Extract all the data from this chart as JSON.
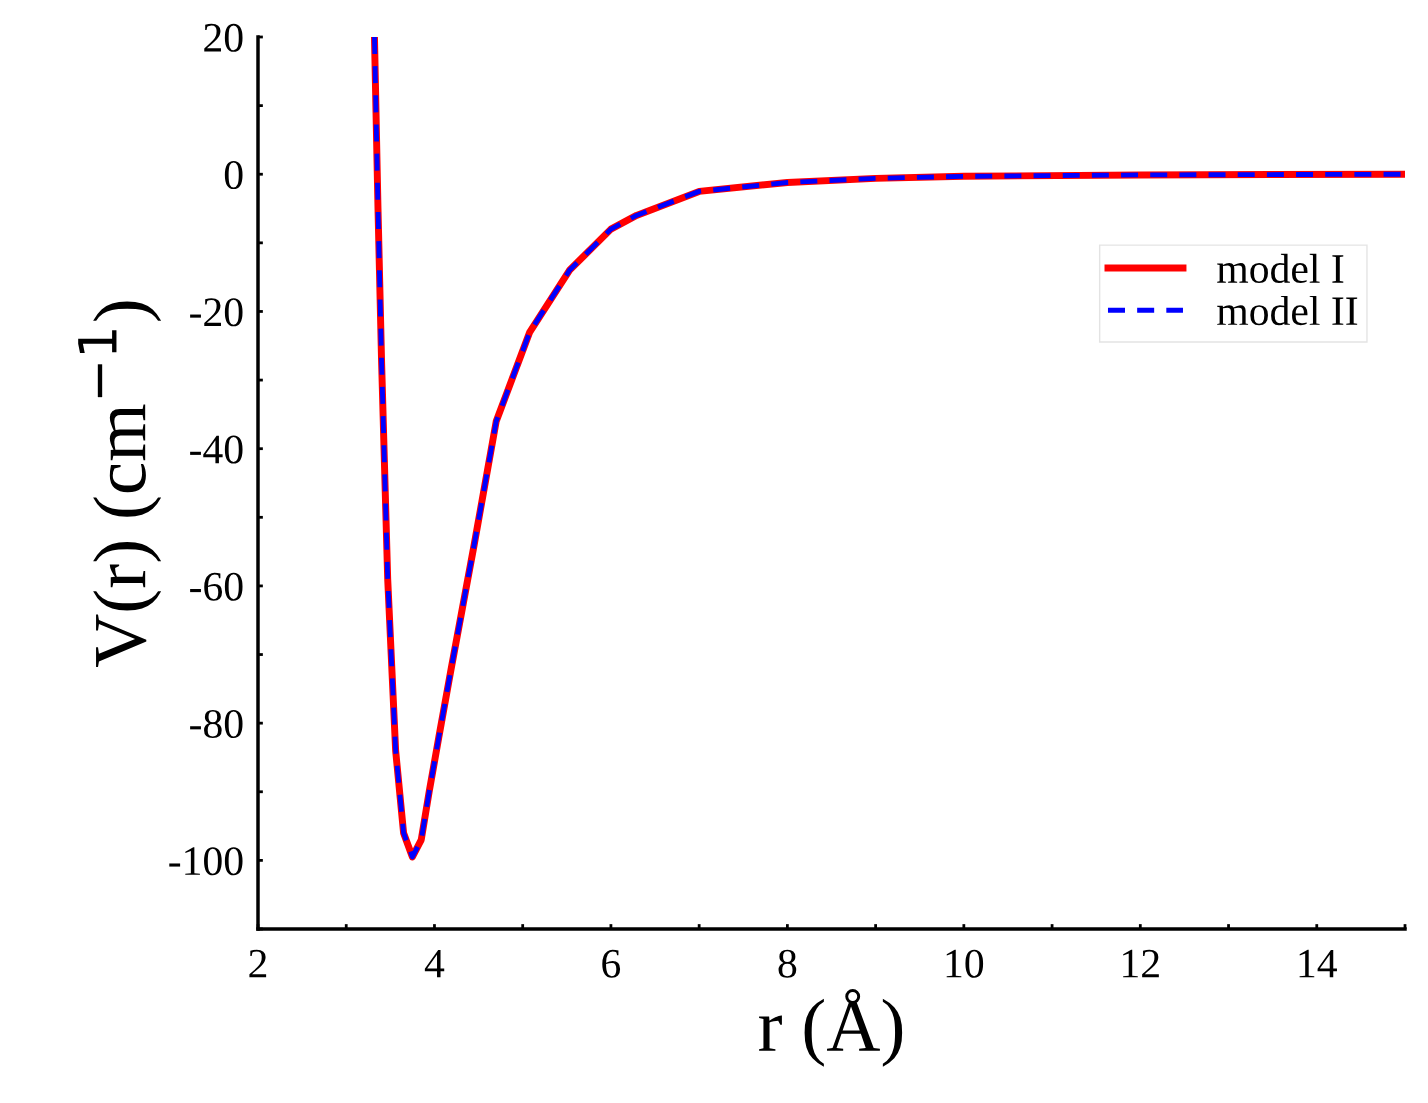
{
  "chart_data": {
    "type": "line",
    "xlabel": "r (Å)",
    "ylabel": "V(r) (cm$^{−1}$)",
    "x": [
      3.32,
      3.36,
      3.4,
      3.47,
      3.56,
      3.65,
      3.75,
      3.85,
      3.94,
      4.05,
      4.19,
      4.45,
      4.7,
      5.08,
      5.53,
      6.0,
      6.29,
      7,
      8,
      9,
      10,
      12,
      15
    ],
    "series": [
      {
        "name": "model I",
        "color": "#ff0000",
        "line_style": "solid",
        "values": [
          20,
          -5,
          -27,
          -59,
          -84,
          -96,
          -99.5,
          -97,
          -90,
          -82,
          -72,
          -54,
          -36,
          -23,
          -14,
          -8,
          -6,
          -2.5,
          -1.2,
          -0.6,
          -0.3,
          -0.1,
          0
        ]
      },
      {
        "name": "model II",
        "color": "#0000ff",
        "line_style": "dashed",
        "values": [
          20,
          -5,
          -27,
          -59,
          -84,
          -96,
          -99.5,
          -97,
          -90,
          -82,
          -72,
          -54,
          -36,
          -23,
          -14,
          -8,
          -6,
          -2.5,
          -1.2,
          -0.6,
          -0.3,
          -0.1,
          0
        ]
      }
    ],
    "xlim": [
      2,
      15
    ],
    "ylim": [
      -110,
      20
    ],
    "xticks": [
      2,
      {
        "value": 3,
        "label": null
      },
      4,
      {
        "value": 5,
        "label": null
      },
      6,
      {
        "value": 7,
        "label": null
      },
      8,
      {
        "value": 9,
        "label": null
      },
      10,
      {
        "value": 11,
        "label": null
      },
      12,
      {
        "value": 13,
        "label": null
      },
      14,
      {
        "value": 15,
        "label": null
      }
    ],
    "yticks": [
      {
        "value": -110,
        "label": null
      },
      -100,
      {
        "value": -90,
        "label": null
      },
      -80,
      {
        "value": -70,
        "label": null
      },
      -60,
      {
        "value": -50,
        "label": null
      },
      -40,
      {
        "value": -30,
        "label": null
      },
      -20,
      {
        "value": -10,
        "label": null
      },
      0,
      {
        "value": 10,
        "label": null
      },
      20
    ],
    "grid": false,
    "legend": "top right",
    "marker": "none"
  }
}
